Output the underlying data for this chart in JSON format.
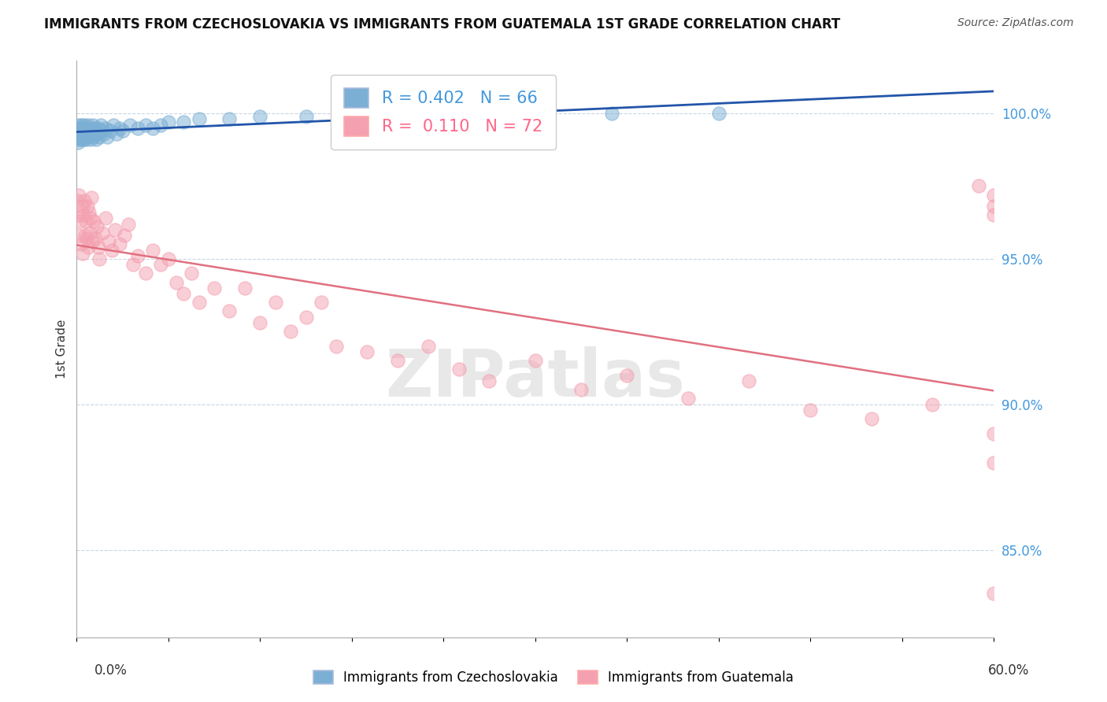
{
  "title": "IMMIGRANTS FROM CZECHOSLOVAKIA VS IMMIGRANTS FROM GUATEMALA 1ST GRADE CORRELATION CHART",
  "source": "Source: ZipAtlas.com",
  "ylabel": "1st Grade",
  "yticks": [
    85.0,
    90.0,
    95.0,
    100.0
  ],
  "xmin": 0.0,
  "xmax": 60.0,
  "ymin": 82.0,
  "ymax": 101.8,
  "blue_R": 0.402,
  "blue_N": 66,
  "pink_R": 0.11,
  "pink_N": 72,
  "blue_color": "#7BAFD4",
  "pink_color": "#F4A0B0",
  "blue_line_color": "#2255AA",
  "pink_line_color": "#E07080",
  "legend_label_blue": "Immigrants from Czechoslovakia",
  "legend_label_pink": "Immigrants from Guatemala",
  "blue_scatter_x": [
    0.05,
    0.08,
    0.1,
    0.12,
    0.15,
    0.18,
    0.2,
    0.22,
    0.25,
    0.28,
    0.3,
    0.32,
    0.35,
    0.38,
    0.4,
    0.42,
    0.45,
    0.48,
    0.5,
    0.52,
    0.55,
    0.58,
    0.6,
    0.65,
    0.7,
    0.75,
    0.8,
    0.85,
    0.9,
    0.95,
    1.0,
    1.05,
    1.1,
    1.15,
    1.2,
    1.25,
    1.3,
    1.4,
    1.5,
    1.6,
    1.7,
    1.8,
    1.9,
    2.0,
    2.2,
    2.4,
    2.6,
    2.8,
    3.0,
    3.5,
    4.0,
    4.5,
    5.0,
    5.5,
    6.0,
    7.0,
    8.0,
    10.0,
    12.0,
    15.0,
    18.0,
    20.0,
    25.0,
    30.0,
    35.0,
    42.0
  ],
  "blue_scatter_y": [
    99.2,
    99.5,
    99.0,
    99.3,
    99.6,
    99.1,
    99.4,
    99.2,
    99.5,
    99.3,
    99.1,
    99.4,
    99.6,
    99.2,
    99.3,
    99.5,
    99.1,
    99.4,
    99.2,
    99.6,
    99.3,
    99.1,
    99.5,
    99.4,
    99.2,
    99.6,
    99.3,
    99.5,
    99.1,
    99.4,
    99.3,
    99.6,
    99.2,
    99.5,
    99.4,
    99.1,
    99.3,
    99.5,
    99.2,
    99.6,
    99.4,
    99.3,
    99.5,
    99.2,
    99.4,
    99.6,
    99.3,
    99.5,
    99.4,
    99.6,
    99.5,
    99.6,
    99.5,
    99.6,
    99.7,
    99.7,
    99.8,
    99.8,
    99.9,
    99.9,
    100.0,
    100.0,
    100.0,
    100.0,
    100.0,
    100.0
  ],
  "pink_scatter_x": [
    0.05,
    0.1,
    0.15,
    0.2,
    0.25,
    0.3,
    0.35,
    0.4,
    0.45,
    0.5,
    0.55,
    0.6,
    0.65,
    0.7,
    0.75,
    0.8,
    0.85,
    0.9,
    0.95,
    1.0,
    1.1,
    1.2,
    1.3,
    1.4,
    1.5,
    1.7,
    1.9,
    2.1,
    2.3,
    2.5,
    2.8,
    3.1,
    3.4,
    3.7,
    4.0,
    4.5,
    5.0,
    5.5,
    6.0,
    6.5,
    7.0,
    7.5,
    8.0,
    9.0,
    10.0,
    11.0,
    12.0,
    13.0,
    14.0,
    15.0,
    16.0,
    17.0,
    19.0,
    21.0,
    23.0,
    25.0,
    27.0,
    30.0,
    33.0,
    36.0,
    40.0,
    44.0,
    48.0,
    52.0,
    56.0,
    59.0,
    60.0,
    60.0,
    60.0,
    60.0,
    60.0,
    60.0
  ],
  "pink_scatter_y": [
    97.0,
    96.5,
    97.2,
    95.8,
    96.3,
    95.5,
    96.8,
    95.2,
    96.5,
    97.0,
    95.8,
    96.3,
    95.7,
    96.8,
    95.4,
    96.6,
    95.9,
    96.4,
    97.1,
    95.6,
    96.3,
    95.7,
    96.1,
    95.4,
    95.0,
    95.9,
    96.4,
    95.6,
    95.3,
    96.0,
    95.5,
    95.8,
    96.2,
    94.8,
    95.1,
    94.5,
    95.3,
    94.8,
    95.0,
    94.2,
    93.8,
    94.5,
    93.5,
    94.0,
    93.2,
    94.0,
    92.8,
    93.5,
    92.5,
    93.0,
    93.5,
    92.0,
    91.8,
    91.5,
    92.0,
    91.2,
    90.8,
    91.5,
    90.5,
    91.0,
    90.2,
    90.8,
    89.8,
    89.5,
    90.0,
    97.5,
    97.2,
    96.8,
    96.5,
    83.5,
    88.0,
    89.0
  ]
}
